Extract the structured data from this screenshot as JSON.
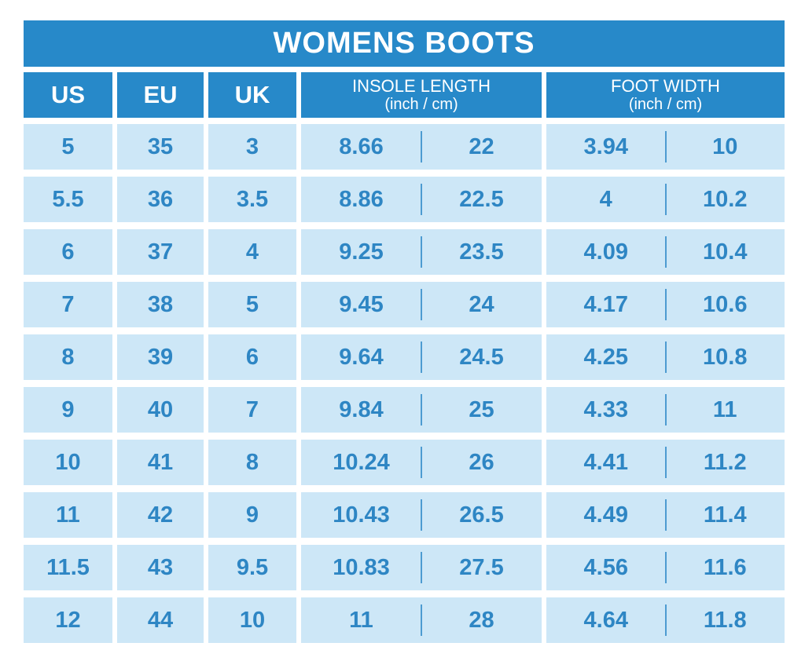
{
  "title": "WOMENS BOOTS",
  "columns": [
    {
      "label": "US",
      "sub": ""
    },
    {
      "label": "EU",
      "sub": ""
    },
    {
      "label": "UK",
      "sub": ""
    },
    {
      "label": "INSOLE LENGTH",
      "sub": "(inch / cm)"
    },
    {
      "label": "FOOT WIDTH",
      "sub": "(inch / cm)"
    }
  ],
  "chart_data": {
    "type": "table",
    "title": "WOMENS BOOTS",
    "columns": [
      "US",
      "EU",
      "UK",
      "INSOLE LENGTH (inch)",
      "INSOLE LENGTH (cm)",
      "FOOT WIDTH (inch)",
      "FOOT WIDTH (cm)"
    ],
    "rows": [
      [
        "5",
        "35",
        "3",
        "8.66",
        "22",
        "3.94",
        "10"
      ],
      [
        "5.5",
        "36",
        "3.5",
        "8.86",
        "22.5",
        "4",
        "10.2"
      ],
      [
        "6",
        "37",
        "4",
        "9.25",
        "23.5",
        "4.09",
        "10.4"
      ],
      [
        "7",
        "38",
        "5",
        "9.45",
        "24",
        "4.17",
        "10.6"
      ],
      [
        "8",
        "39",
        "6",
        "9.64",
        "24.5",
        "4.25",
        "10.8"
      ],
      [
        "9",
        "40",
        "7",
        "9.84",
        "25",
        "4.33",
        "11"
      ],
      [
        "10",
        "41",
        "8",
        "10.24",
        "26",
        "4.41",
        "11.2"
      ],
      [
        "11",
        "42",
        "9",
        "10.43",
        "26.5",
        "4.49",
        "11.4"
      ],
      [
        "11.5",
        "43",
        "9.5",
        "10.83",
        "27.5",
        "4.56",
        "11.6"
      ],
      [
        "12",
        "44",
        "10",
        "11",
        "28",
        "4.64",
        "11.8"
      ]
    ]
  },
  "colors": {
    "header_bg": "#2789c9",
    "cell_bg": "#cde7f7",
    "cell_text": "#2e86c4",
    "header_text": "#ffffff",
    "divider": "#4d9bd1",
    "page_bg": "#ffffff"
  }
}
